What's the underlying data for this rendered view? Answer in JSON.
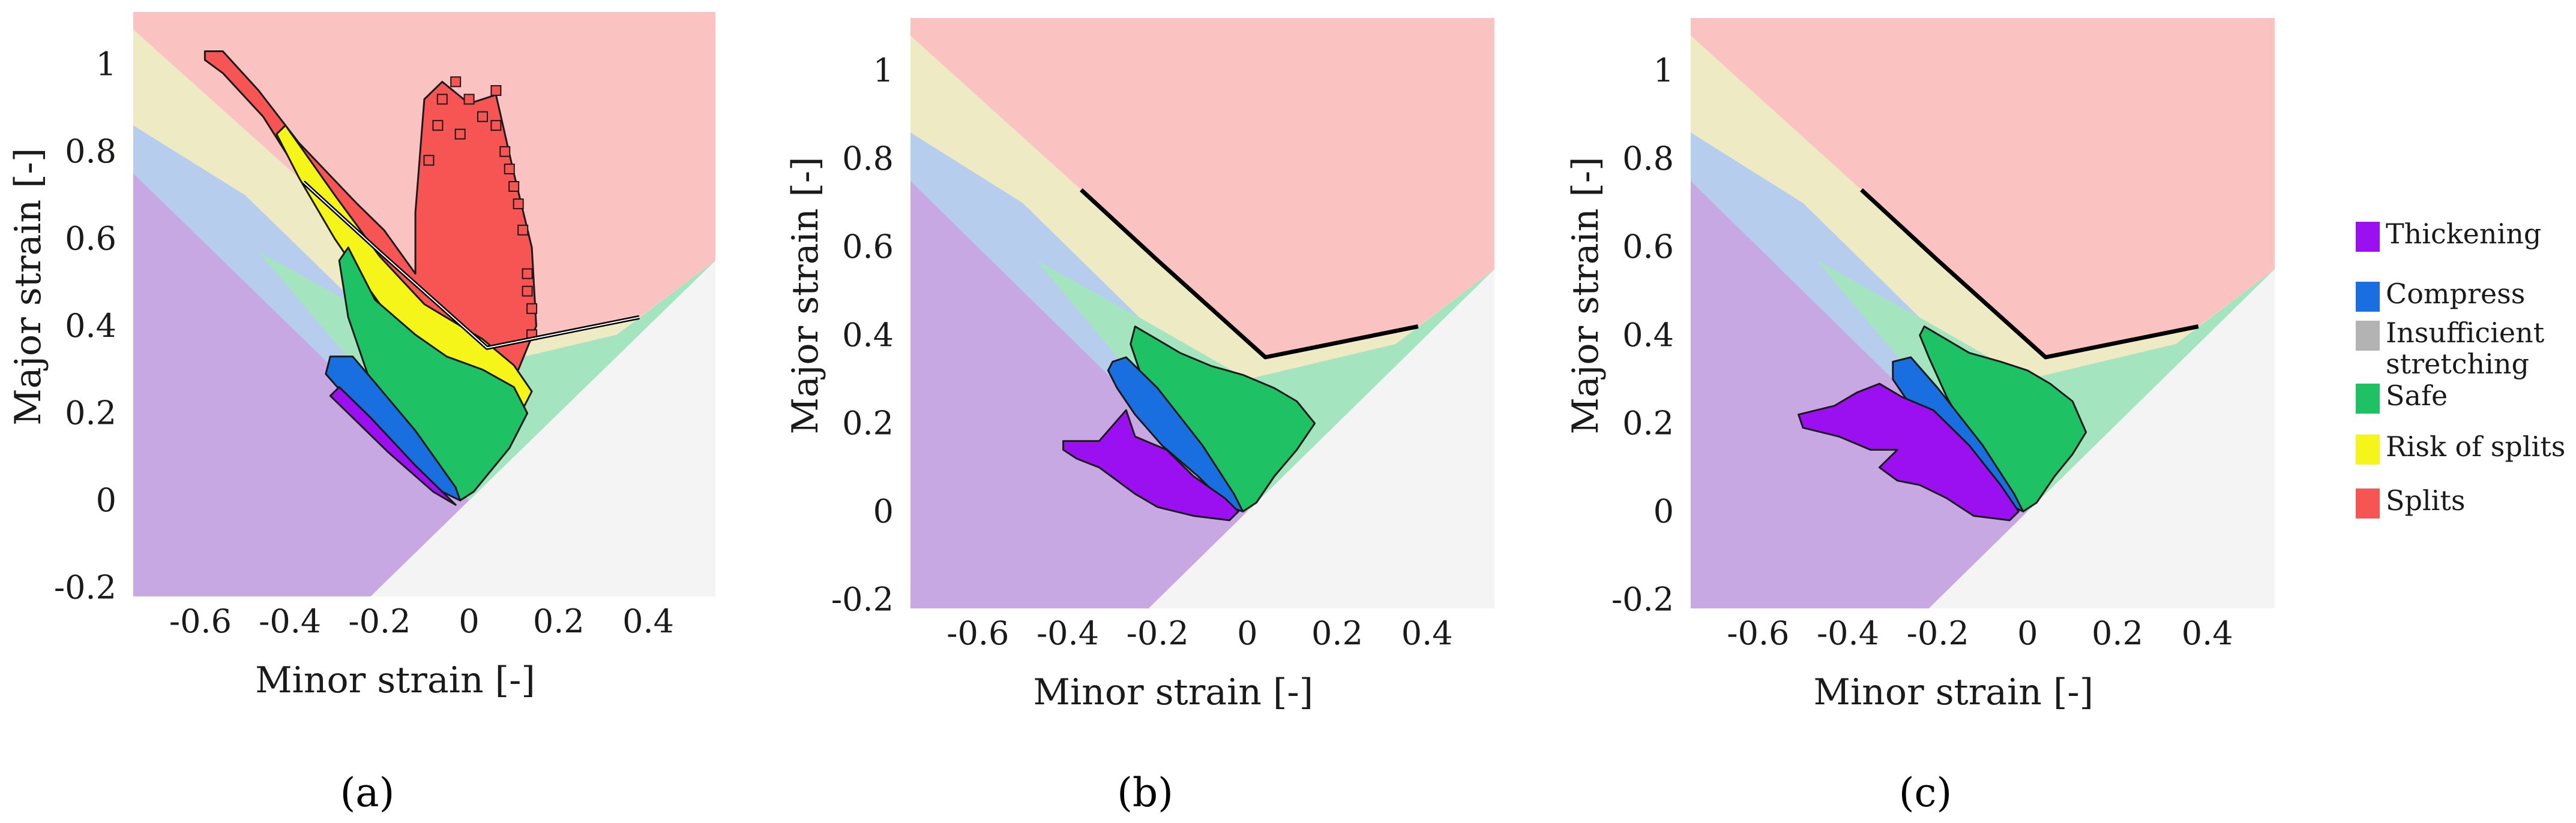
{
  "chart_data": [
    {
      "panel_label": "(a)",
      "type": "scatter",
      "title": "",
      "xlabel": "Minor strain [-]",
      "ylabel": "Major strain [-]",
      "xlim": [
        -0.75,
        0.55
      ],
      "ylim": [
        -0.22,
        1.12
      ],
      "xticks": [
        "-0.6",
        "-0.4",
        "-0.2",
        "0",
        "0.2",
        "0.4"
      ],
      "yticks": [
        "-0.2",
        "0",
        "0.2",
        "0.4",
        "0.6",
        "0.8",
        "1"
      ],
      "flc": {
        "x": [
          -0.37,
          -0.2,
          0.04,
          0.38
        ],
        "y": [
          0.73,
          0.57,
          0.35,
          0.42
        ]
      },
      "points": [
        {
          "category": "Thickening",
          "minor": [
            -0.3,
            -0.04
          ],
          "major": [
            0.3,
            0.0
          ]
        },
        {
          "category": "Compress",
          "minor": [
            -0.32,
            -0.02
          ],
          "major": [
            0.34,
            0.0
          ]
        },
        {
          "category": "Safe",
          "minor": [
            -0.28,
            0.12
          ],
          "major": [
            0.6,
            0.0
          ]
        },
        {
          "category": "Risk of splits",
          "minor": [
            -0.4,
            0.14
          ],
          "major": [
            0.86,
            0.2
          ]
        },
        {
          "category": "Splits",
          "minor": [
            -0.58,
            0.15
          ],
          "major": [
            1.02,
            0.22
          ]
        }
      ]
    },
    {
      "panel_label": "(b)",
      "type": "scatter",
      "title": "",
      "xlabel": "Minor strain [-]",
      "ylabel": "Major strain [-]",
      "xlim": [
        -0.75,
        0.55
      ],
      "ylim": [
        -0.22,
        1.12
      ],
      "xticks": [
        "-0.6",
        "-0.4",
        "-0.2",
        "0",
        "0.2",
        "0.4"
      ],
      "yticks": [
        "-0.2",
        "0",
        "0.2",
        "0.4",
        "0.6",
        "0.8",
        "1"
      ],
      "flc": {
        "x": [
          -0.37,
          -0.2,
          0.04,
          0.38
        ],
        "y": [
          0.73,
          0.57,
          0.35,
          0.42
        ]
      },
      "points": [
        {
          "category": "Thickening",
          "minor": [
            -0.4,
            -0.02
          ],
          "major": [
            0.18,
            -0.02
          ]
        },
        {
          "category": "Compress",
          "minor": [
            -0.3,
            -0.02
          ],
          "major": [
            0.33,
            0.0
          ]
        },
        {
          "category": "Safe",
          "minor": [
            -0.26,
            0.15
          ],
          "major": [
            0.42,
            0.0
          ]
        }
      ]
    },
    {
      "panel_label": "(c)",
      "type": "scatter",
      "title": "",
      "xlabel": "Minor strain [-]",
      "ylabel": "Major strain [-]",
      "xlim": [
        -0.75,
        0.55
      ],
      "ylim": [
        -0.22,
        1.12
      ],
      "xticks": [
        "-0.6",
        "-0.4",
        "-0.2",
        "0",
        "0.2",
        "0.4"
      ],
      "yticks": [
        "-0.2",
        "0",
        "0.2",
        "0.4",
        "0.6",
        "0.8",
        "1"
      ],
      "flc": {
        "x": [
          -0.37,
          -0.2,
          0.04,
          0.38
        ],
        "y": [
          0.73,
          0.57,
          0.35,
          0.42
        ]
      },
      "points": [
        {
          "category": "Thickening",
          "minor": [
            -0.5,
            -0.02
          ],
          "major": [
            0.24,
            -0.02
          ]
        },
        {
          "category": "Compress",
          "minor": [
            -0.3,
            -0.02
          ],
          "major": [
            0.33,
            0.0
          ]
        },
        {
          "category": "Safe",
          "minor": [
            -0.24,
            0.13
          ],
          "major": [
            0.42,
            0.0
          ]
        }
      ]
    }
  ],
  "legend": [
    {
      "label": "Thickening",
      "color": "#9b10f0"
    },
    {
      "label": "Compress",
      "color": "#1a6fe0"
    },
    {
      "label": "Insufficient stretching",
      "color": "#b3b3b3"
    },
    {
      "label": "Safe",
      "color": "#1ec265"
    },
    {
      "label": "Risk of splits",
      "color": "#f5f51a"
    },
    {
      "label": "Splits",
      "color": "#f75454"
    }
  ],
  "region_colors": {
    "thickening": "#c8a8e2",
    "compress": "#b6cdee",
    "insufficient": "#f4f4f4",
    "safe": "#a4e5c0",
    "risk": "#eeeac4",
    "splits": "#fbc2c2"
  }
}
